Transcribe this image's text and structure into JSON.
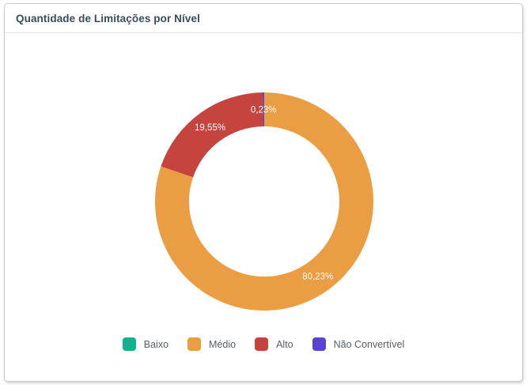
{
  "card": {
    "title": "Quantidade de Limitações por Nível"
  },
  "chart_data": {
    "type": "pie",
    "donut": true,
    "title": "Quantidade de Limitações por Nível",
    "unit": "%",
    "legend_position": "bottom",
    "start_angle_deg": 0,
    "direction": "clockwise",
    "segments": [
      {
        "name": "Baixo",
        "value": 0,
        "label": "",
        "color": "#13b28c"
      },
      {
        "name": "Médio",
        "value": 80.23,
        "label": "80,23%",
        "color": "#eb9d44"
      },
      {
        "name": "Alto",
        "value": 19.55,
        "label": "19,55%",
        "color": "#c5443e"
      },
      {
        "name": "Não Convertível",
        "value": 0.23,
        "label": "0,23%",
        "color": "#5843d3"
      }
    ],
    "label_color": "#ffffff"
  }
}
